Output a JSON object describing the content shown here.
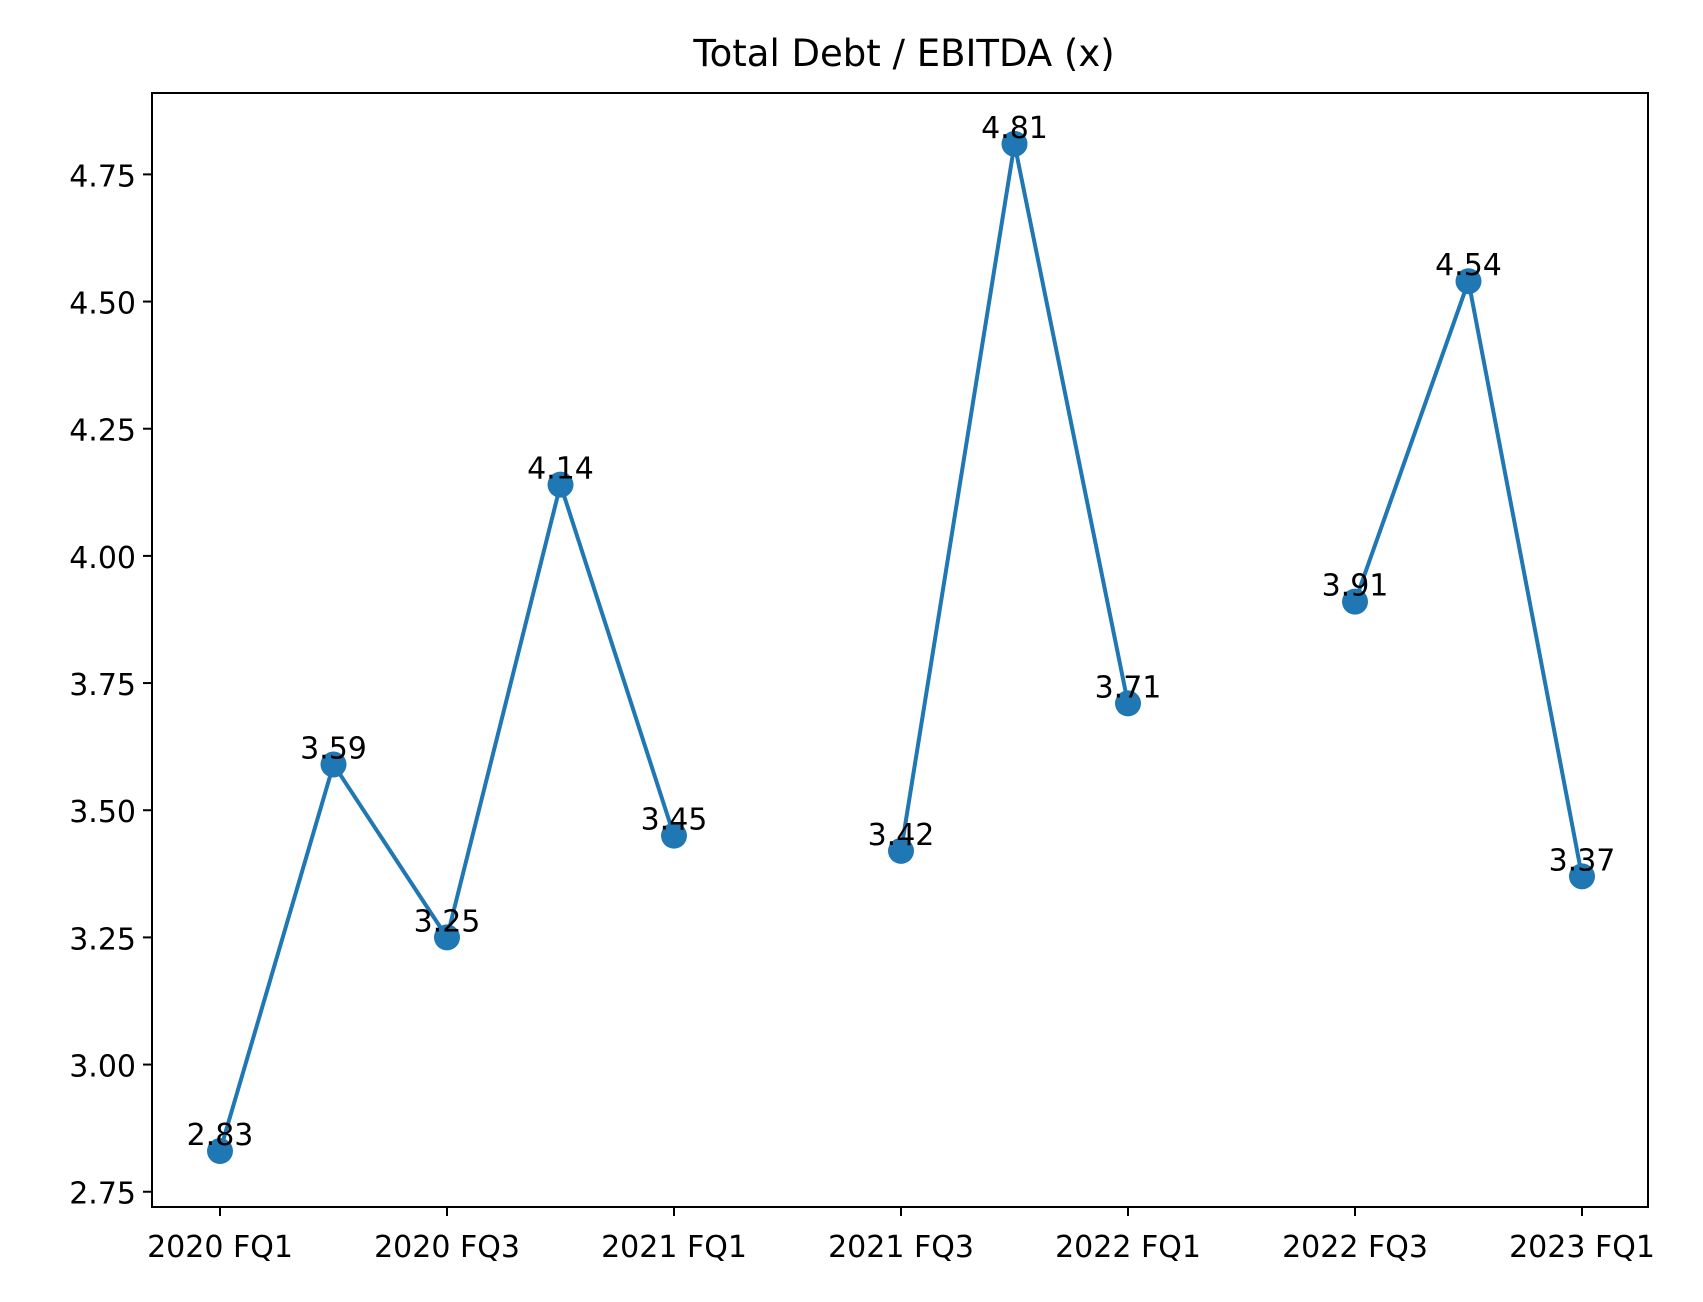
{
  "chart_data": {
    "type": "line",
    "title": "Total Debt / EBITDA (x)",
    "xlabel": "",
    "ylabel": "",
    "x": [
      "2020 FQ1",
      "2020 FQ2",
      "2020 FQ3",
      "2020 FQ4",
      "2021 FQ1",
      "2021 FQ2",
      "2021 FQ3",
      "2021 FQ4",
      "2022 FQ1",
      "2022 FQ2",
      "2022 FQ3",
      "2022 FQ4",
      "2023 FQ1"
    ],
    "x_tick_labels": [
      "2020 FQ1",
      "2020 FQ3",
      "2021 FQ1",
      "2021 FQ3",
      "2022 FQ1",
      "2022 FQ3",
      "2023 FQ1"
    ],
    "series": [
      {
        "color": "#1f77b4",
        "values": [
          2.83,
          3.59,
          3.25,
          4.14,
          3.45,
          null,
          3.42,
          4.81,
          3.71,
          null,
          3.91,
          4.54,
          3.37
        ],
        "labels": [
          "2.83",
          "3.59",
          "3.25",
          "4.14",
          "3.45",
          null,
          "3.42",
          "4.81",
          "3.71",
          null,
          "3.91",
          "4.54",
          "3.37"
        ]
      }
    ],
    "ylim": [
      2.72,
      4.91
    ],
    "yticks": [
      "2.75",
      "3.00",
      "3.25",
      "3.50",
      "3.75",
      "4.00",
      "4.25",
      "4.50",
      "4.75"
    ],
    "grid": false,
    "legend": "none"
  }
}
